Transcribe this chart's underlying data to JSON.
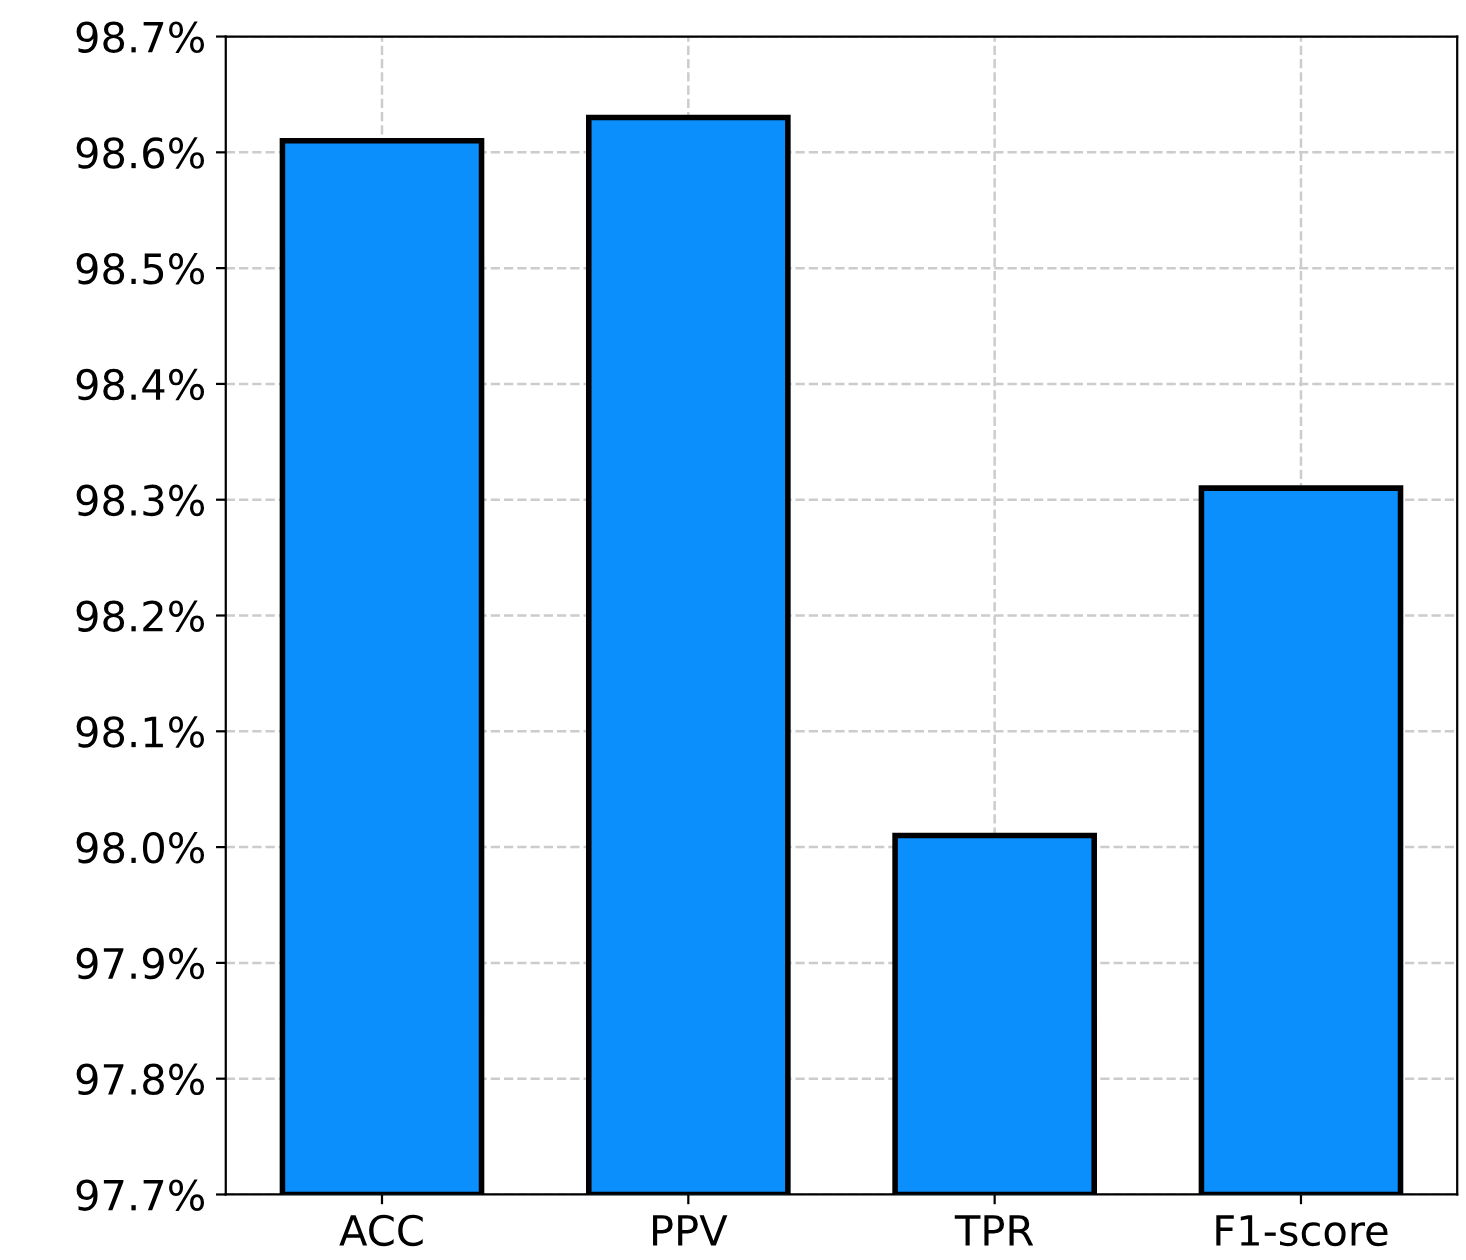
{
  "chart_data": {
    "type": "bar",
    "categories": [
      "ACC",
      "PPV",
      "TPR",
      "F1-score"
    ],
    "values": [
      98.61,
      98.63,
      98.01,
      98.31
    ],
    "color": "#0a8ffc",
    "ylim": [
      97.7,
      98.7
    ],
    "yticks": [
      {
        "value": 97.7,
        "label": "97.7%"
      },
      {
        "value": 97.8,
        "label": "97.8%"
      },
      {
        "value": 97.9,
        "label": "97.9%"
      },
      {
        "value": 98.0,
        "label": "98.0%"
      },
      {
        "value": 98.1,
        "label": "98.1%"
      },
      {
        "value": 98.2,
        "label": "98.2%"
      },
      {
        "value": 98.3,
        "label": "98.3%"
      },
      {
        "value": 98.4,
        "label": "98.4%"
      },
      {
        "value": 98.5,
        "label": "98.5%"
      },
      {
        "value": 98.6,
        "label": "98.6%"
      },
      {
        "value": 98.7,
        "label": "98.7%"
      }
    ],
    "grid": true,
    "line_style": "dashed"
  }
}
